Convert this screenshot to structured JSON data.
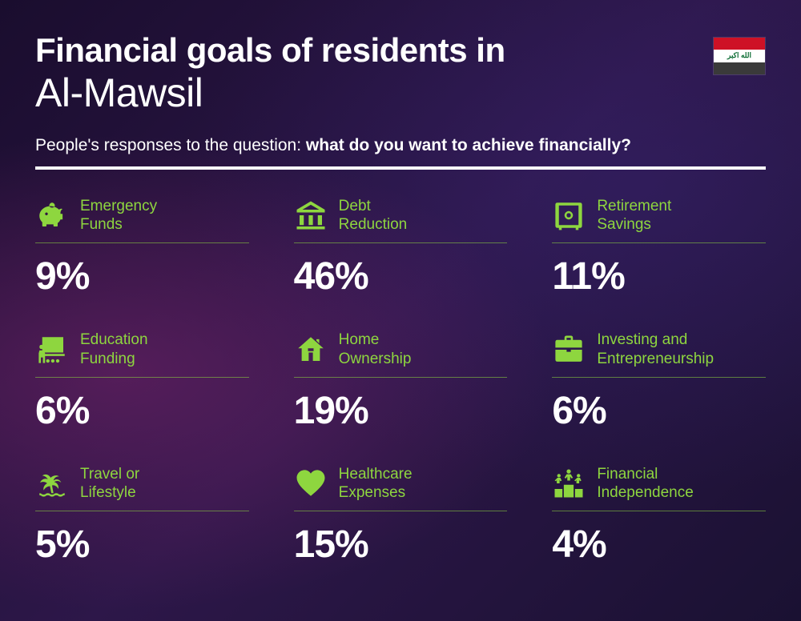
{
  "header": {
    "title_prefix": "Financial goals of residents in",
    "city": "Al-Mawsil",
    "subtitle_plain": "People's responses to the question: ",
    "subtitle_bold": "what do you want to achieve financially?"
  },
  "flag": {
    "stripe_colors": [
      "#ce1126",
      "#ffffff",
      "#3a3a3a"
    ],
    "script_color": "#007a3d",
    "script": "الله اكبر"
  },
  "accent_color": "#8ed63f",
  "background_colors": {
    "base": "#1a0d2e",
    "glow1": "#8c2878",
    "glow2": "#3c2882"
  },
  "items": [
    {
      "icon": "piggy-bank-icon",
      "label": "Emergency Funds",
      "value": "9%"
    },
    {
      "icon": "bank-icon",
      "label": "Debt Reduction",
      "value": "46%"
    },
    {
      "icon": "safe-icon",
      "label": "Retirement Savings",
      "value": "11%"
    },
    {
      "icon": "presentation-icon",
      "label": "Education Funding",
      "value": "6%"
    },
    {
      "icon": "house-icon",
      "label": "Home Ownership",
      "value": "19%"
    },
    {
      "icon": "briefcase-icon",
      "label": "Investing and Entrepreneurship",
      "value": "6%"
    },
    {
      "icon": "palm-icon",
      "label": "Travel or Lifestyle",
      "value": "5%"
    },
    {
      "icon": "heart-pulse-icon",
      "label": "Healthcare Expenses",
      "value": "15%"
    },
    {
      "icon": "podium-icon",
      "label": "Financial Independence",
      "value": "4%"
    }
  ]
}
